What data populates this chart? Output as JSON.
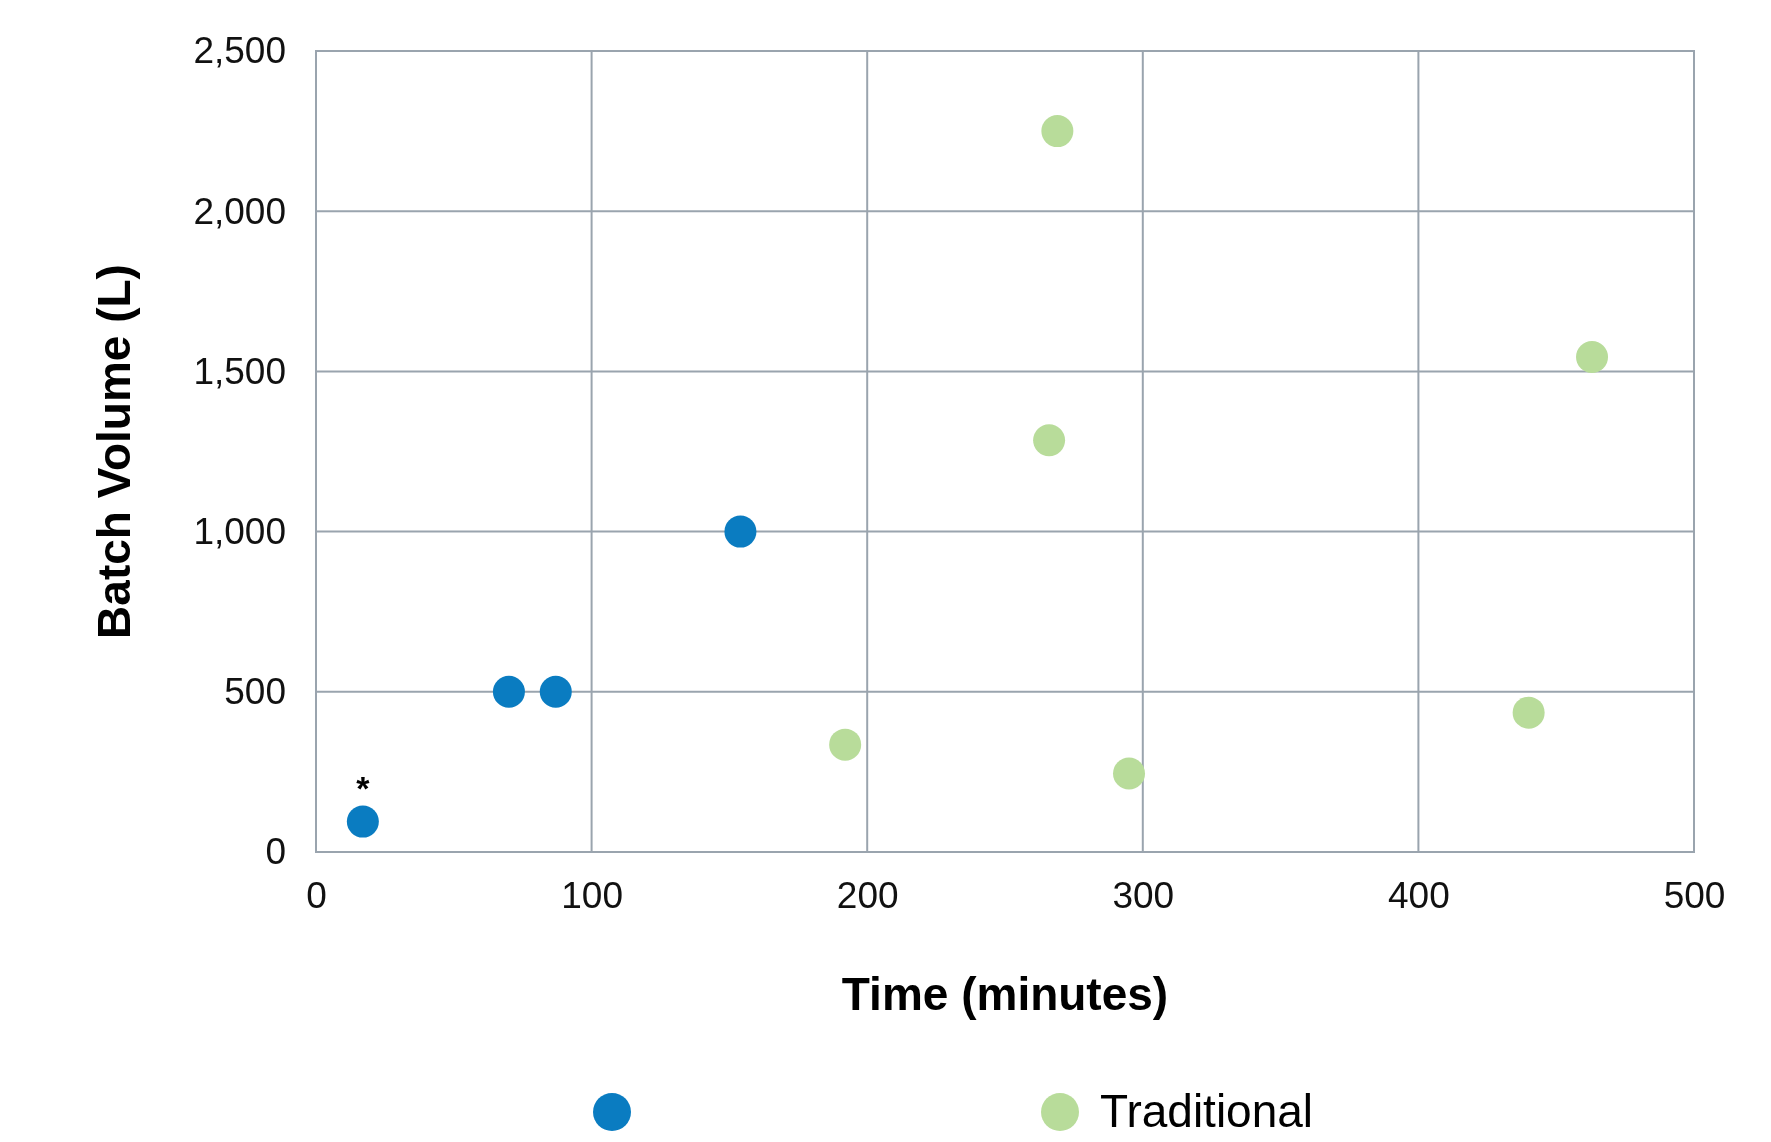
{
  "chart_data": {
    "type": "scatter",
    "xlabel": "Time (minutes)",
    "ylabel": "Batch Volume (L)",
    "xlim": [
      0,
      500
    ],
    "xticks": [
      0,
      100,
      200,
      300,
      400,
      500
    ],
    "ylim": [
      0,
      2500
    ],
    "yticks": [
      {
        "value": 0,
        "label": "0"
      },
      {
        "value": 500,
        "label": "500"
      },
      {
        "value": 1000,
        "label": "1,000"
      },
      {
        "value": 1500,
        "label": "1,500"
      },
      {
        "value": 2000,
        "label": "2,000"
      },
      {
        "value": 2500,
        "label": "2,500"
      }
    ],
    "grid": true,
    "legend": "bottom",
    "marker": "circle",
    "series": [
      {
        "color": "#0a7cc1",
        "x": [
          17,
          70,
          87,
          154
        ],
        "values": [
          95,
          500,
          500,
          1000
        ]
      },
      {
        "name": "Traditional",
        "color": "#b8dc9a",
        "x": [
          192,
          269,
          266,
          295,
          440,
          463
        ],
        "values": [
          335,
          2250,
          1285,
          245,
          435,
          1545
        ]
      }
    ],
    "annotations": [
      {
        "text": "*",
        "x": 17,
        "y": 95
      }
    ]
  }
}
